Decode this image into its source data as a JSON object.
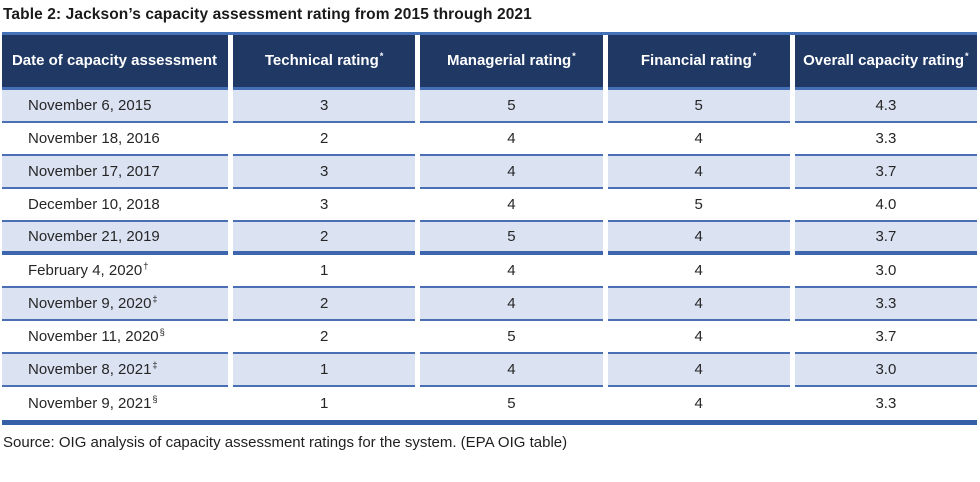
{
  "title": "Table 2: Jackson’s capacity assessment rating from 2015 through 2021",
  "source": "Source: OIG analysis of capacity assessment ratings for the system. (EPA OIG table)",
  "colors": {
    "header_bg": "#1F3864",
    "header_text": "#FFFFFF",
    "alt_row_bg": "#DBE2F2",
    "grid_line": "#4B6FB5",
    "outer_line": "#3560A8",
    "body_text": "#262626"
  },
  "table": {
    "headers": [
      {
        "label": "Date of capacity assessment",
        "sup": ""
      },
      {
        "label": "Technical rating",
        "sup": "*"
      },
      {
        "label": "Managerial rating",
        "sup": "*"
      },
      {
        "label": "Financial rating",
        "sup": "*"
      },
      {
        "label": "Overall capacity rating",
        "sup": "*"
      }
    ],
    "rows": [
      {
        "date": "November 6, 2015",
        "marker": "",
        "technical": "3",
        "managerial": "5",
        "financial": "5",
        "overall": "4.3"
      },
      {
        "date": "November 18, 2016",
        "marker": "",
        "technical": "2",
        "managerial": "4",
        "financial": "4",
        "overall": "3.3"
      },
      {
        "date": "November 17, 2017",
        "marker": "",
        "technical": "3",
        "managerial": "4",
        "financial": "4",
        "overall": "3.7"
      },
      {
        "date": "December 10, 2018",
        "marker": "",
        "technical": "3",
        "managerial": "4",
        "financial": "5",
        "overall": "4.0"
      },
      {
        "date": "November 21, 2019",
        "marker": "",
        "technical": "2",
        "managerial": "5",
        "financial": "4",
        "overall": "3.7"
      },
      {
        "date": "February 4, 2020",
        "marker": "†",
        "technical": "1",
        "managerial": "4",
        "financial": "4",
        "overall": "3.0"
      },
      {
        "date": "November 9, 2020",
        "marker": "‡",
        "technical": "2",
        "managerial": "4",
        "financial": "4",
        "overall": "3.3"
      },
      {
        "date": "November 11, 2020",
        "marker": "§",
        "technical": "2",
        "managerial": "5",
        "financial": "4",
        "overall": "3.7"
      },
      {
        "date": "November 8, 2021",
        "marker": "‡",
        "technical": "1",
        "managerial": "4",
        "financial": "4",
        "overall": "3.0"
      },
      {
        "date": "November 9, 2021",
        "marker": "§",
        "technical": "1",
        "managerial": "5",
        "financial": "4",
        "overall": "3.3"
      }
    ]
  }
}
